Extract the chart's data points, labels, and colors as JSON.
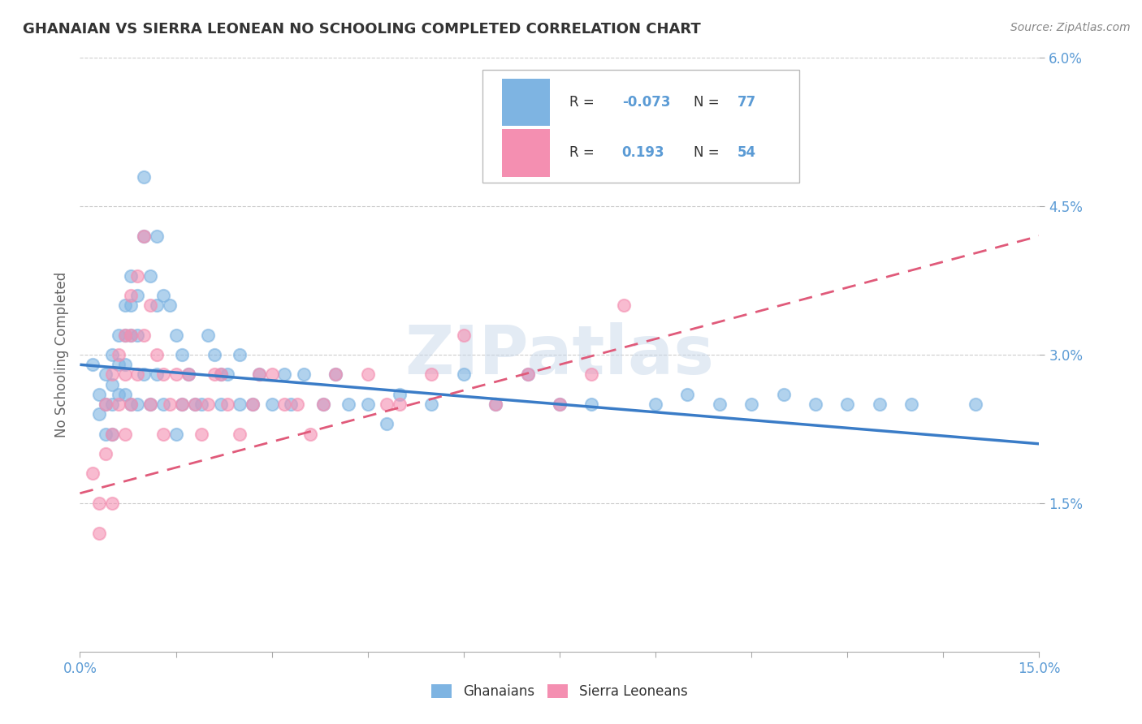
{
  "title": "GHANAIAN VS SIERRA LEONEAN NO SCHOOLING COMPLETED CORRELATION CHART",
  "source_text": "Source: ZipAtlas.com",
  "ylabel": "No Schooling Completed",
  "xlim": [
    0.0,
    0.15
  ],
  "ylim": [
    0.0,
    0.06
  ],
  "xticks": [
    0.0,
    0.015,
    0.03,
    0.045,
    0.06,
    0.075,
    0.09,
    0.105,
    0.12,
    0.135,
    0.15
  ],
  "xticklabels_show": {
    "0.0": "0.0%",
    "0.15": "15.0%"
  },
  "yticks_right": [
    0.015,
    0.03,
    0.045,
    0.06
  ],
  "yticklabels_right": [
    "1.5%",
    "3.0%",
    "4.5%",
    "6.0%"
  ],
  "ghanaian_color": "#7eb4e2",
  "sierra_leonean_color": "#f48fb1",
  "ghanaian_line_color": "#3a7cc7",
  "sierra_leonean_line_color": "#e05a7a",
  "background_color": "#ffffff",
  "grid_color": "#cccccc",
  "watermark_text": "ZIPatlas",
  "title_color": "#333333",
  "axis_label_color": "#666666",
  "tick_label_color": "#5b9bd5",
  "R_ghanaian": -0.073,
  "N_ghanaian": 77,
  "R_sierra_leonean": 0.193,
  "N_sierra_leonean": 54,
  "blue_line_x": [
    0.0,
    0.15
  ],
  "blue_line_y": [
    0.029,
    0.021
  ],
  "pink_line_x": [
    0.0,
    0.15
  ],
  "pink_line_y": [
    0.016,
    0.042
  ],
  "ghanaians_scatter_x": [
    0.002,
    0.003,
    0.003,
    0.004,
    0.004,
    0.004,
    0.005,
    0.005,
    0.005,
    0.005,
    0.006,
    0.006,
    0.006,
    0.007,
    0.007,
    0.007,
    0.007,
    0.008,
    0.008,
    0.008,
    0.008,
    0.009,
    0.009,
    0.009,
    0.01,
    0.01,
    0.01,
    0.011,
    0.011,
    0.012,
    0.012,
    0.012,
    0.013,
    0.013,
    0.014,
    0.015,
    0.015,
    0.016,
    0.016,
    0.017,
    0.018,
    0.019,
    0.02,
    0.021,
    0.022,
    0.022,
    0.023,
    0.025,
    0.025,
    0.027,
    0.028,
    0.03,
    0.032,
    0.033,
    0.035,
    0.038,
    0.04,
    0.042,
    0.045,
    0.048,
    0.05,
    0.055,
    0.06,
    0.065,
    0.07,
    0.075,
    0.08,
    0.09,
    0.095,
    0.1,
    0.105,
    0.11,
    0.115,
    0.12,
    0.125,
    0.13,
    0.14
  ],
  "ghanaians_scatter_y": [
    0.029,
    0.026,
    0.024,
    0.028,
    0.025,
    0.022,
    0.03,
    0.027,
    0.025,
    0.022,
    0.032,
    0.029,
    0.026,
    0.035,
    0.032,
    0.029,
    0.026,
    0.038,
    0.035,
    0.032,
    0.025,
    0.036,
    0.032,
    0.025,
    0.048,
    0.042,
    0.028,
    0.038,
    0.025,
    0.042,
    0.035,
    0.028,
    0.036,
    0.025,
    0.035,
    0.032,
    0.022,
    0.03,
    0.025,
    0.028,
    0.025,
    0.025,
    0.032,
    0.03,
    0.028,
    0.025,
    0.028,
    0.03,
    0.025,
    0.025,
    0.028,
    0.025,
    0.028,
    0.025,
    0.028,
    0.025,
    0.028,
    0.025,
    0.025,
    0.023,
    0.026,
    0.025,
    0.028,
    0.025,
    0.028,
    0.025,
    0.025,
    0.025,
    0.026,
    0.025,
    0.025,
    0.026,
    0.025,
    0.025,
    0.025,
    0.025,
    0.025
  ],
  "sierra_leoneans_scatter_x": [
    0.002,
    0.003,
    0.003,
    0.004,
    0.004,
    0.005,
    0.005,
    0.005,
    0.006,
    0.006,
    0.007,
    0.007,
    0.007,
    0.008,
    0.008,
    0.008,
    0.009,
    0.009,
    0.01,
    0.01,
    0.011,
    0.011,
    0.012,
    0.013,
    0.013,
    0.014,
    0.015,
    0.016,
    0.017,
    0.018,
    0.019,
    0.02,
    0.021,
    0.022,
    0.023,
    0.025,
    0.027,
    0.028,
    0.03,
    0.032,
    0.034,
    0.036,
    0.038,
    0.04,
    0.045,
    0.048,
    0.05,
    0.055,
    0.06,
    0.065,
    0.07,
    0.075,
    0.08,
    0.085
  ],
  "sierra_leoneans_scatter_y": [
    0.018,
    0.015,
    0.012,
    0.025,
    0.02,
    0.028,
    0.022,
    0.015,
    0.03,
    0.025,
    0.032,
    0.028,
    0.022,
    0.036,
    0.032,
    0.025,
    0.038,
    0.028,
    0.042,
    0.032,
    0.035,
    0.025,
    0.03,
    0.028,
    0.022,
    0.025,
    0.028,
    0.025,
    0.028,
    0.025,
    0.022,
    0.025,
    0.028,
    0.028,
    0.025,
    0.022,
    0.025,
    0.028,
    0.028,
    0.025,
    0.025,
    0.022,
    0.025,
    0.028,
    0.028,
    0.025,
    0.025,
    0.028,
    0.032,
    0.025,
    0.028,
    0.025,
    0.028,
    0.035
  ],
  "legend_label_ghanaian": "Ghanaians",
  "legend_label_sierra_leonean": "Sierra Leoneans"
}
